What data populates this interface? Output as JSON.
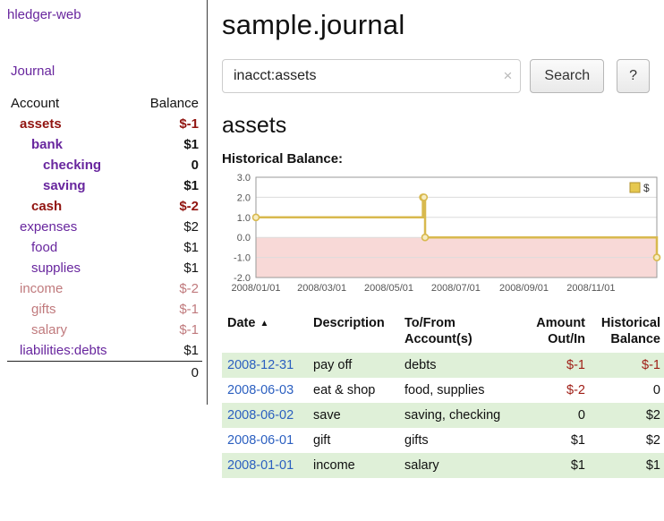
{
  "app": {
    "title": "hledger-web"
  },
  "sidebar": {
    "journal_link": "Journal",
    "accounts": {
      "header_account": "Account",
      "header_balance": "Balance",
      "rows": [
        {
          "name": "assets",
          "balance": "$-1",
          "indent": 1,
          "bold": true,
          "name_color": "red",
          "balance_color": "red"
        },
        {
          "name": "bank",
          "balance": "$1",
          "indent": 2,
          "bold": true,
          "name_color": "purple",
          "balance_color": "black"
        },
        {
          "name": "checking",
          "balance": "0",
          "indent": 3,
          "bold": true,
          "name_color": "purple",
          "balance_color": "black"
        },
        {
          "name": "saving",
          "balance": "$1",
          "indent": 3,
          "bold": true,
          "name_color": "purple",
          "balance_color": "black"
        },
        {
          "name": "cash",
          "balance": "$-2",
          "indent": 2,
          "bold": true,
          "name_color": "red",
          "balance_color": "red"
        },
        {
          "name": "expenses",
          "balance": "$2",
          "indent": 1,
          "bold": false,
          "name_color": "purple",
          "balance_color": "black"
        },
        {
          "name": "food",
          "balance": "$1",
          "indent": 2,
          "bold": false,
          "name_color": "purple",
          "balance_color": "black"
        },
        {
          "name": "supplies",
          "balance": "$1",
          "indent": 2,
          "bold": false,
          "name_color": "purple",
          "balance_color": "black"
        },
        {
          "name": "income",
          "balance": "$-2",
          "indent": 1,
          "bold": false,
          "name_color": "rose",
          "balance_color": "rose"
        },
        {
          "name": "gifts",
          "balance": "$-1",
          "indent": 2,
          "bold": false,
          "name_color": "rose",
          "balance_color": "rose"
        },
        {
          "name": "salary",
          "balance": "$-1",
          "indent": 2,
          "bold": false,
          "name_color": "rose",
          "balance_color": "rose"
        },
        {
          "name": "liabilities:debts",
          "balance": "$1",
          "indent": 1,
          "bold": false,
          "name_color": "purple",
          "balance_color": "black"
        }
      ],
      "total": "0"
    }
  },
  "main": {
    "title": "sample.journal",
    "search": {
      "value": "inacct:assets",
      "clear_icon": "×",
      "button_label": "Search",
      "help_label": "?"
    },
    "heading": "assets",
    "register": {
      "headers": [
        {
          "line1": "Date",
          "sort_icon": "▲",
          "align": "left"
        },
        {
          "line1": "Description",
          "align": "left"
        },
        {
          "line1": "To/From",
          "line2": "Account(s)",
          "align": "left"
        },
        {
          "line1": "Amount",
          "line2": "Out/In",
          "align": "right"
        },
        {
          "line1": "Historical",
          "line2": "Balance",
          "align": "right"
        }
      ],
      "rows": [
        {
          "date": "2008-12-31",
          "description": "pay off",
          "accounts": "debts",
          "amount": "$-1",
          "amount_negative": true,
          "balance": "$-1",
          "balance_negative": true
        },
        {
          "date": "2008-06-03",
          "description": "eat & shop",
          "accounts": "food, supplies",
          "amount": "$-2",
          "amount_negative": true,
          "balance": "0",
          "balance_negative": false
        },
        {
          "date": "2008-06-02",
          "description": "save",
          "accounts": "saving, checking",
          "amount": "0",
          "amount_negative": false,
          "balance": "$2",
          "balance_negative": false
        },
        {
          "date": "2008-06-01",
          "description": "gift",
          "accounts": "gifts",
          "amount": "$1",
          "amount_negative": false,
          "balance": "$2",
          "balance_negative": false
        },
        {
          "date": "2008-01-01",
          "description": "income",
          "accounts": "salary",
          "amount": "$1",
          "amount_negative": false,
          "balance": "$1",
          "balance_negative": false
        }
      ]
    }
  },
  "chart_data": {
    "type": "line",
    "step": true,
    "title": "Historical Balance:",
    "legend": [
      {
        "label": "$",
        "color": "#e6c84f"
      }
    ],
    "ylim": [
      -2,
      3
    ],
    "yticks": [
      3.0,
      2.0,
      1.0,
      0.0,
      -1.0,
      -2.0
    ],
    "xticks": [
      "2008/01/01",
      "2008/03/01",
      "2008/05/01",
      "2008/07/01",
      "2008/09/01",
      "2008/11/01"
    ],
    "x_range": [
      "2008-01-01",
      "2008-12-31"
    ],
    "series": [
      {
        "name": "$",
        "color": "#d8b94e",
        "points": [
          {
            "x": "2008-01-01",
            "y": 1
          },
          {
            "x": "2008-06-01",
            "y": 2
          },
          {
            "x": "2008-06-02",
            "y": 2
          },
          {
            "x": "2008-06-03",
            "y": 0
          },
          {
            "x": "2008-12-31",
            "y": -1
          }
        ]
      }
    ],
    "negative_region_color": "#f8d9d7"
  }
}
